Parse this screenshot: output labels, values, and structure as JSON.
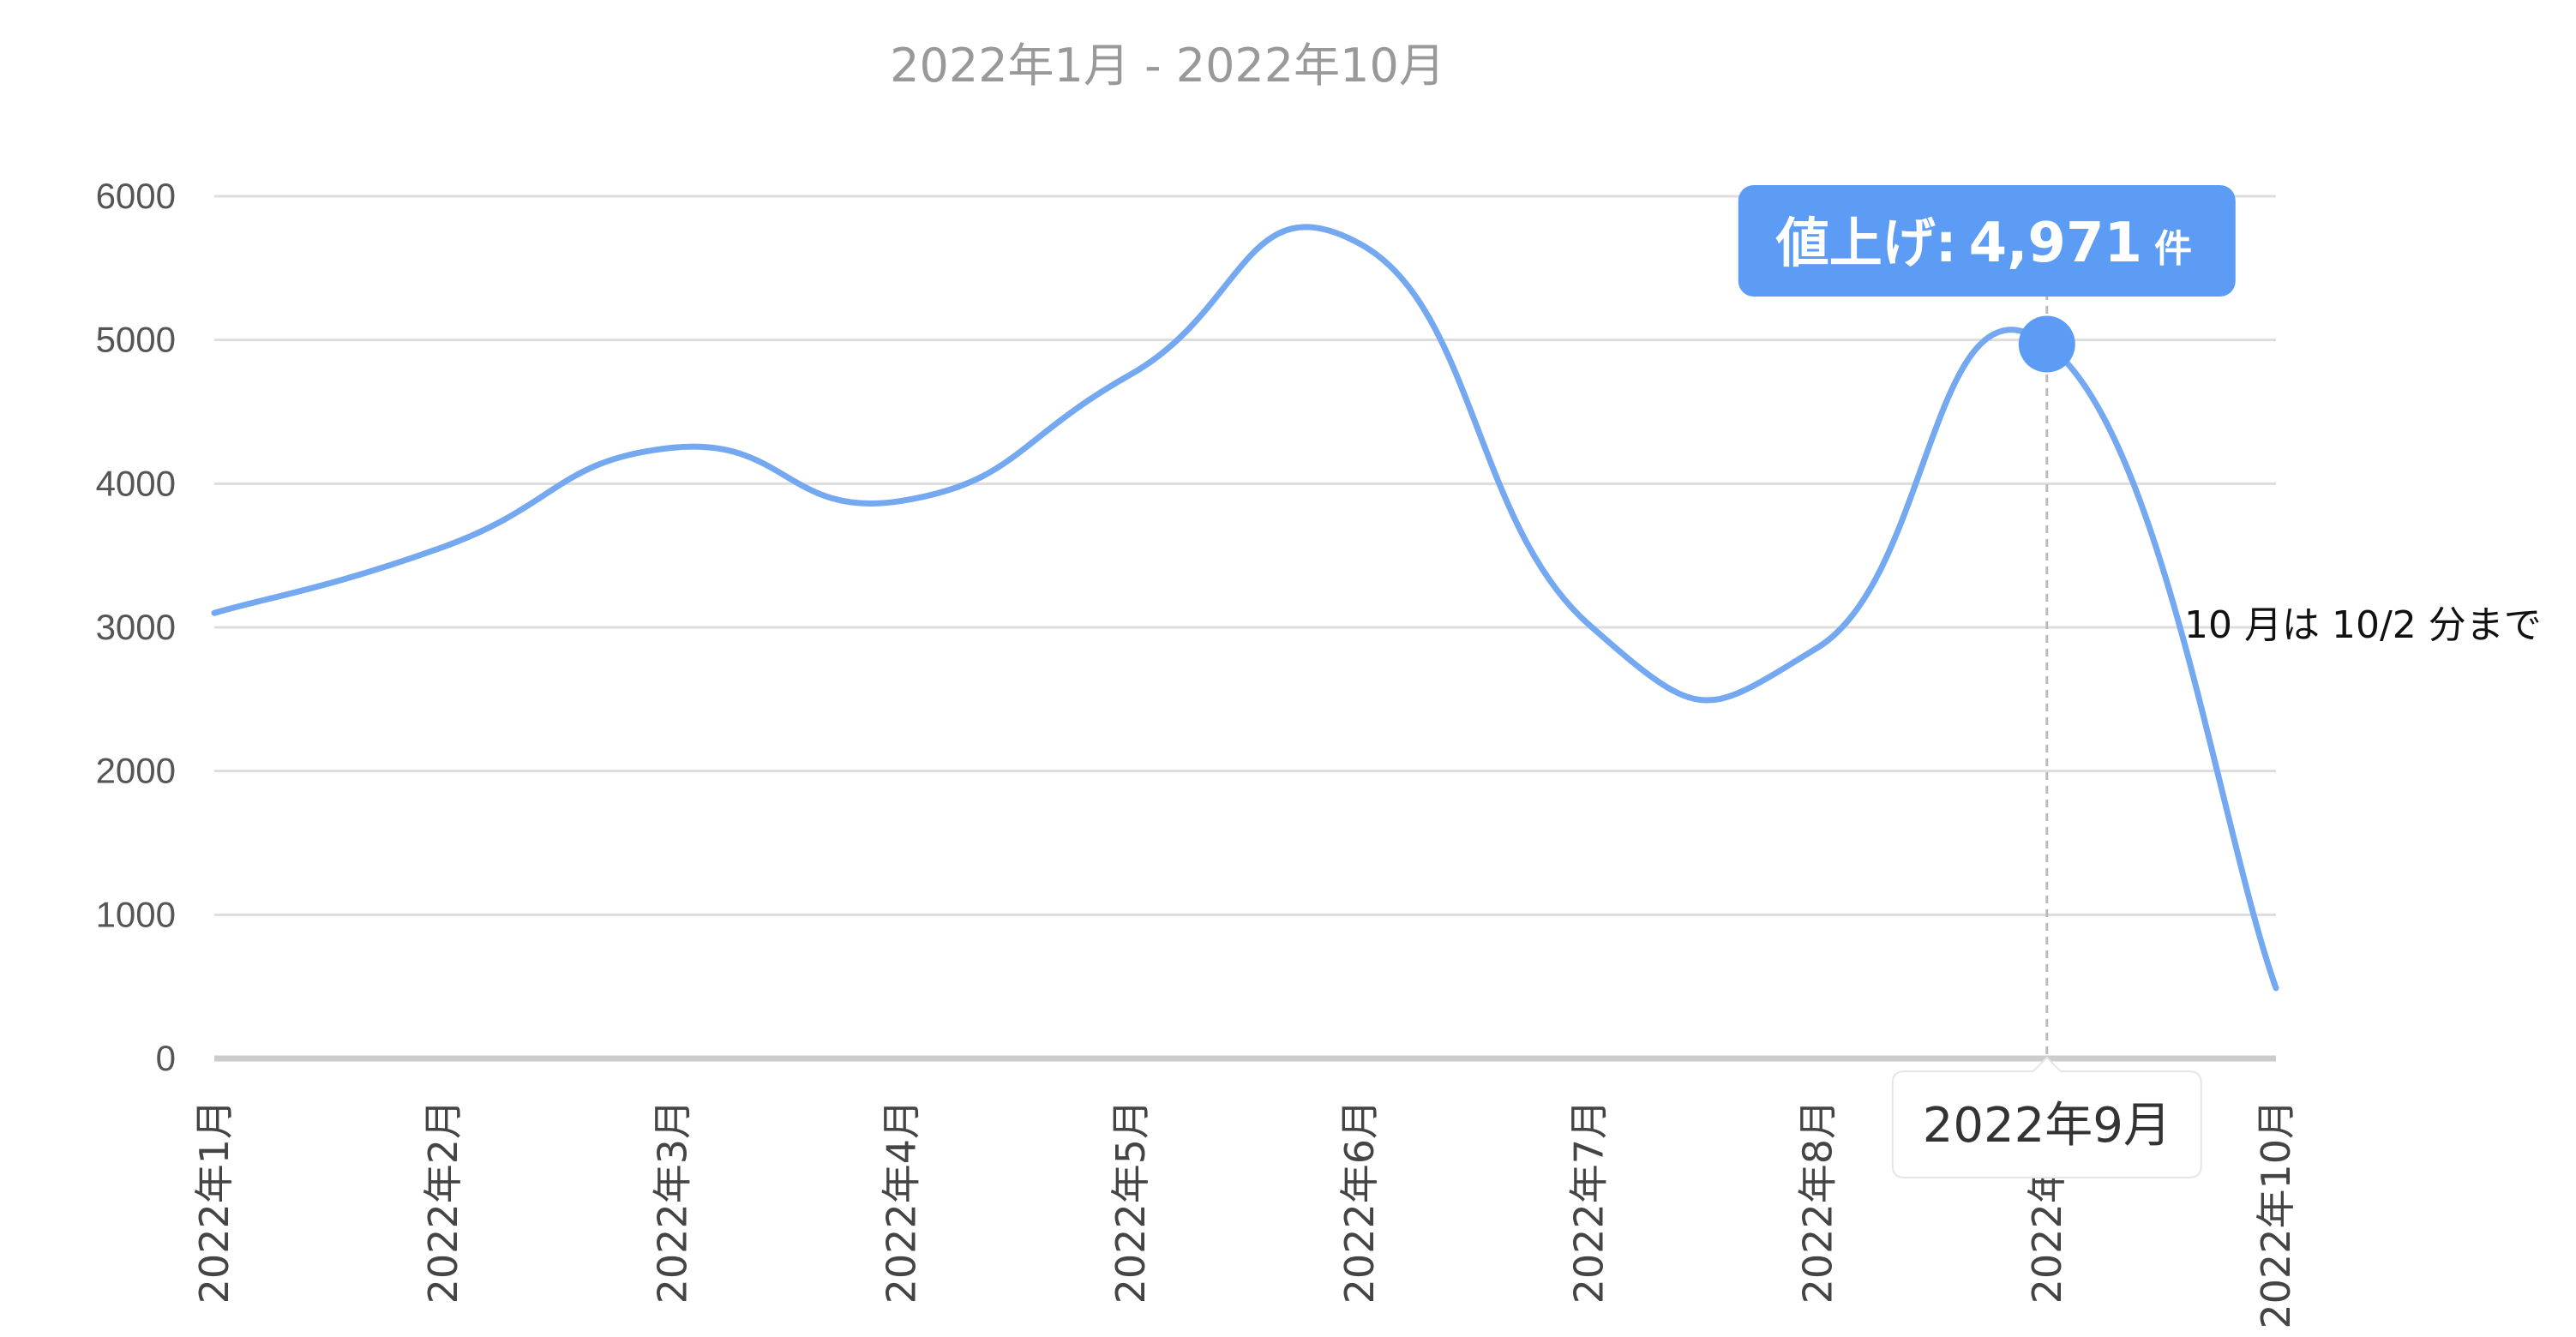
{
  "chart_data": {
    "type": "line",
    "title": "",
    "subtitle": "2022年1月 - 2022年10月",
    "xlabel": "",
    "ylabel": "",
    "ylim": [
      0,
      6000
    ],
    "y_ticks": [
      "0",
      "1000",
      "2000",
      "3000",
      "4000",
      "5000",
      "6000"
    ],
    "grid": true,
    "categories": [
      "2022年1月",
      "2022年2月",
      "2022年3月",
      "2022年4月",
      "2022年5月",
      "2022年6月",
      "2022年7月",
      "2022年8月",
      "2022年9月",
      "2022年10月"
    ],
    "series": [
      {
        "name": "値上げ",
        "values": [
          3100,
          3560,
          4250,
          3880,
          4760,
          5670,
          3020,
          2860,
          4971,
          490
        ]
      }
    ],
    "colors": {
      "line": "#74a9f2",
      "grid": "#dddddd",
      "tooltip_bg": "#5c9cf5",
      "crosshair": "#bbbbbb"
    },
    "tooltip": {
      "series_label": "値上げ",
      "separator": ":",
      "value": "4,971",
      "unit": "件",
      "category": "2022年9月",
      "category_index": 8
    },
    "annotation": "10 月は 10/2 分まで"
  }
}
